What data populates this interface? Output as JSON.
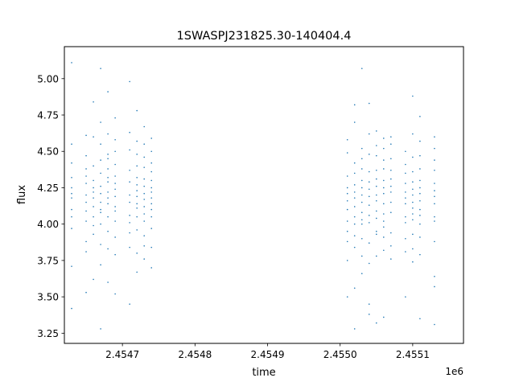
{
  "chart_data": {
    "type": "scatter",
    "title": "1SWASPJ231825.30-140404.4",
    "xlabel": "time",
    "ylabel": "flux",
    "x_offset_label": "1e6",
    "xlim": [
      2.45462,
      2.45517
    ],
    "ylim": [
      3.18,
      5.22
    ],
    "x_ticks": [
      {
        "value": 2.4547,
        "label": "2.4547"
      },
      {
        "value": 2.4548,
        "label": "2.4548"
      },
      {
        "value": 2.4549,
        "label": "2.4549"
      },
      {
        "value": 2.455,
        "label": "2.4550"
      },
      {
        "value": 2.4551,
        "label": "2.4551"
      }
    ],
    "y_ticks": [
      {
        "value": 3.25,
        "label": "3.25"
      },
      {
        "value": 3.5,
        "label": "3.50"
      },
      {
        "value": 3.75,
        "label": "3.75"
      },
      {
        "value": 4.0,
        "label": "4.00"
      },
      {
        "value": 4.25,
        "label": "4.25"
      },
      {
        "value": 4.5,
        "label": "4.50"
      },
      {
        "value": 4.75,
        "label": "4.75"
      },
      {
        "value": 5.0,
        "label": "5.00"
      }
    ],
    "grid": false,
    "marker_color": "#1f77b4",
    "series": [
      {
        "points": [
          [
            2.45463,
            4.32
          ],
          [
            2.45463,
            4.18
          ],
          [
            2.45463,
            4.05
          ],
          [
            2.45463,
            4.42
          ],
          [
            2.45463,
            4.55
          ],
          [
            2.45463,
            3.71
          ],
          [
            2.45463,
            4.25
          ],
          [
            2.45463,
            5.11
          ],
          [
            2.45463,
            3.42
          ],
          [
            2.45463,
            4.1
          ],
          [
            2.45463,
            4.21
          ],
          [
            2.45463,
            3.97
          ],
          [
            2.45465,
            4.15
          ],
          [
            2.45465,
            4.38
          ],
          [
            2.45465,
            4.02
          ],
          [
            2.45465,
            3.88
          ],
          [
            2.45465,
            4.28
          ],
          [
            2.45465,
            4.61
          ],
          [
            2.45465,
            3.53
          ],
          [
            2.45465,
            4.2
          ],
          [
            2.45465,
            4.09
          ],
          [
            2.45465,
            4.33
          ],
          [
            2.45465,
            3.81
          ],
          [
            2.45465,
            4.47
          ],
          [
            2.45466,
            4.22
          ],
          [
            2.45466,
            4.05
          ],
          [
            2.45466,
            4.4
          ],
          [
            2.45466,
            3.93
          ],
          [
            2.45466,
            4.6
          ],
          [
            2.45466,
            4.12
          ],
          [
            2.45466,
            3.62
          ],
          [
            2.45466,
            4.3
          ],
          [
            2.45466,
            4.18
          ],
          [
            2.45466,
            3.99
          ],
          [
            2.45466,
            4.84
          ],
          [
            2.45466,
            4.25
          ],
          [
            2.45467,
            4.26
          ],
          [
            2.45467,
            4.1
          ],
          [
            2.45467,
            4.44
          ],
          [
            2.45467,
            3.86
          ],
          [
            2.45467,
            4.35
          ],
          [
            2.45467,
            4.0
          ],
          [
            2.45467,
            4.7
          ],
          [
            2.45467,
            3.72
          ],
          [
            2.45467,
            4.21
          ],
          [
            2.45467,
            4.55
          ],
          [
            2.45467,
            4.15
          ],
          [
            2.45467,
            4.08
          ],
          [
            2.45467,
            3.28
          ],
          [
            2.45467,
            5.07
          ],
          [
            2.45468,
            4.29
          ],
          [
            2.45468,
            4.14
          ],
          [
            2.45468,
            4.48
          ],
          [
            2.45468,
            3.95
          ],
          [
            2.45468,
            4.38
          ],
          [
            2.45468,
            4.05
          ],
          [
            2.45468,
            4.62
          ],
          [
            2.45468,
            3.83
          ],
          [
            2.45468,
            4.22
          ],
          [
            2.45468,
            4.32
          ],
          [
            2.45468,
            4.91
          ],
          [
            2.45468,
            3.6
          ],
          [
            2.45468,
            4.18
          ],
          [
            2.45468,
            4.45
          ],
          [
            2.45469,
            4.24
          ],
          [
            2.45469,
            4.09
          ],
          [
            2.45469,
            4.41
          ],
          [
            2.45469,
            3.91
          ],
          [
            2.45469,
            4.33
          ],
          [
            2.45469,
            4.02
          ],
          [
            2.45469,
            4.58
          ],
          [
            2.45469,
            3.79
          ],
          [
            2.45469,
            4.19
          ],
          [
            2.45469,
            4.28
          ],
          [
            2.45469,
            4.73
          ],
          [
            2.45469,
            3.52
          ],
          [
            2.45469,
            4.12
          ],
          [
            2.45469,
            4.5
          ],
          [
            2.45471,
            4.2
          ],
          [
            2.45471,
            4.06
          ],
          [
            2.45471,
            4.37
          ],
          [
            2.45471,
            3.94
          ],
          [
            2.45471,
            4.29
          ],
          [
            2.45471,
            4.51
          ],
          [
            2.45471,
            3.84
          ],
          [
            2.45471,
            4.63
          ],
          [
            2.45471,
            4.15
          ],
          [
            2.45471,
            4.01
          ],
          [
            2.45471,
            3.45
          ],
          [
            2.45471,
            4.98
          ],
          [
            2.45472,
            4.23
          ],
          [
            2.45472,
            4.11
          ],
          [
            2.45472,
            4.4
          ],
          [
            2.45472,
            3.96
          ],
          [
            2.45472,
            4.32
          ],
          [
            2.45472,
            4.05
          ],
          [
            2.45472,
            4.57
          ],
          [
            2.45472,
            3.8
          ],
          [
            2.45472,
            4.19
          ],
          [
            2.45472,
            4.48
          ],
          [
            2.45472,
            3.67
          ],
          [
            2.45472,
            4.78
          ],
          [
            2.45472,
            4.27
          ],
          [
            2.45472,
            4.14
          ],
          [
            2.45473,
            4.21
          ],
          [
            2.45473,
            4.07
          ],
          [
            2.45473,
            4.39
          ],
          [
            2.45473,
            3.92
          ],
          [
            2.45473,
            4.31
          ],
          [
            2.45473,
            4.02
          ],
          [
            2.45473,
            4.55
          ],
          [
            2.45473,
            3.76
          ],
          [
            2.45473,
            4.17
          ],
          [
            2.45473,
            4.46
          ],
          [
            2.45473,
            4.67
          ],
          [
            2.45473,
            3.85
          ],
          [
            2.45473,
            4.26
          ],
          [
            2.45473,
            4.12
          ],
          [
            2.45474,
            4.22
          ],
          [
            2.45474,
            4.1
          ],
          [
            2.45474,
            4.36
          ],
          [
            2.45474,
            3.97
          ],
          [
            2.45474,
            4.3
          ],
          [
            2.45474,
            4.05
          ],
          [
            2.45474,
            4.5
          ],
          [
            2.45474,
            3.84
          ],
          [
            2.45474,
            4.18
          ],
          [
            2.45474,
            4.42
          ],
          [
            2.45474,
            3.7
          ],
          [
            2.45474,
            4.59
          ],
          [
            2.45474,
            4.25
          ],
          [
            2.45474,
            4.14
          ],
          [
            2.45501,
            4.16
          ],
          [
            2.45501,
            4.02
          ],
          [
            2.45501,
            4.33
          ],
          [
            2.45501,
            3.88
          ],
          [
            2.45501,
            4.25
          ],
          [
            2.45501,
            4.49
          ],
          [
            2.45501,
            3.75
          ],
          [
            2.45501,
            4.1
          ],
          [
            2.45501,
            4.58
          ],
          [
            2.45501,
            3.95
          ],
          [
            2.45501,
            4.21
          ],
          [
            2.45501,
            3.5
          ],
          [
            2.45502,
            4.18
          ],
          [
            2.45502,
            4.05
          ],
          [
            2.45502,
            4.35
          ],
          [
            2.45502,
            3.92
          ],
          [
            2.45502,
            4.27
          ],
          [
            2.45502,
            4.0
          ],
          [
            2.45502,
            4.82
          ],
          [
            2.45502,
            3.56
          ],
          [
            2.45502,
            3.28
          ],
          [
            2.45502,
            4.42
          ],
          [
            2.45502,
            4.12
          ],
          [
            2.45502,
            4.22
          ],
          [
            2.45502,
            3.84
          ],
          [
            2.45502,
            4.7
          ],
          [
            2.45503,
            4.2
          ],
          [
            2.45503,
            4.08
          ],
          [
            2.45503,
            4.38
          ],
          [
            2.45503,
            3.9
          ],
          [
            2.45503,
            4.3
          ],
          [
            2.45503,
            4.03
          ],
          [
            2.45503,
            4.52
          ],
          [
            2.45503,
            3.78
          ],
          [
            2.45503,
            4.15
          ],
          [
            2.45503,
            4.45
          ],
          [
            2.45503,
            3.66
          ],
          [
            2.45503,
            4.25
          ],
          [
            2.45503,
            5.07
          ],
          [
            2.45503,
            4.0
          ],
          [
            2.45504,
            4.19
          ],
          [
            2.45504,
            4.06
          ],
          [
            2.45504,
            4.36
          ],
          [
            2.45504,
            3.87
          ],
          [
            2.45504,
            4.29
          ],
          [
            2.45504,
            4.01
          ],
          [
            2.45504,
            4.83
          ],
          [
            2.45504,
            3.45
          ],
          [
            2.45504,
            3.38
          ],
          [
            2.45504,
            4.24
          ],
          [
            2.45504,
            4.48
          ],
          [
            2.45504,
            4.13
          ],
          [
            2.45504,
            3.73
          ],
          [
            2.45504,
            4.62
          ],
          [
            2.45505,
            4.2
          ],
          [
            2.45505,
            4.09
          ],
          [
            2.45505,
            4.37
          ],
          [
            2.45505,
            3.93
          ],
          [
            2.45505,
            4.31
          ],
          [
            2.45505,
            4.04
          ],
          [
            2.45505,
            4.54
          ],
          [
            2.45505,
            3.32
          ],
          [
            2.45505,
            4.16
          ],
          [
            2.45505,
            4.47
          ],
          [
            2.45505,
            3.78
          ],
          [
            2.45505,
            4.26
          ],
          [
            2.45505,
            3.95
          ],
          [
            2.45505,
            4.64
          ],
          [
            2.45506,
            4.21
          ],
          [
            2.45506,
            4.07
          ],
          [
            2.45506,
            4.38
          ],
          [
            2.45506,
            3.91
          ],
          [
            2.45506,
            4.3
          ],
          [
            2.45506,
            4.02
          ],
          [
            2.45506,
            4.59
          ],
          [
            2.45506,
            3.82
          ],
          [
            2.45506,
            4.14
          ],
          [
            2.45506,
            4.44
          ],
          [
            2.45506,
            3.36
          ],
          [
            2.45506,
            4.25
          ],
          [
            2.45506,
            4.52
          ],
          [
            2.45506,
            3.98
          ],
          [
            2.45507,
            4.22
          ],
          [
            2.45507,
            4.08
          ],
          [
            2.45507,
            4.37
          ],
          [
            2.45507,
            3.94
          ],
          [
            2.45507,
            4.31
          ],
          [
            2.45507,
            4.6
          ],
          [
            2.45507,
            3.85
          ],
          [
            2.45507,
            4.15
          ],
          [
            2.45507,
            4.45
          ],
          [
            2.45507,
            4.26
          ],
          [
            2.45507,
            3.76
          ],
          [
            2.45507,
            4.55
          ],
          [
            2.45509,
            4.18
          ],
          [
            2.45509,
            4.05
          ],
          [
            2.45509,
            4.35
          ],
          [
            2.45509,
            3.9
          ],
          [
            2.45509,
            4.28
          ],
          [
            2.45509,
            4.01
          ],
          [
            2.45509,
            4.5
          ],
          [
            2.45509,
            3.81
          ],
          [
            2.45509,
            4.22
          ],
          [
            2.45509,
            4.41
          ],
          [
            2.45509,
            3.5
          ],
          [
            2.45509,
            4.14
          ],
          [
            2.4551,
            4.2
          ],
          [
            2.4551,
            4.07
          ],
          [
            2.4551,
            4.36
          ],
          [
            2.4551,
            3.93
          ],
          [
            2.4551,
            4.29
          ],
          [
            2.4551,
            4.03
          ],
          [
            2.4551,
            4.62
          ],
          [
            2.4551,
            3.83
          ],
          [
            2.4551,
            4.15
          ],
          [
            2.4551,
            4.46
          ],
          [
            2.4551,
            4.88
          ],
          [
            2.4551,
            4.24
          ],
          [
            2.4551,
            3.74
          ],
          [
            2.4551,
            4.11
          ],
          [
            2.45511,
            4.21
          ],
          [
            2.45511,
            4.06
          ],
          [
            2.45511,
            4.38
          ],
          [
            2.45511,
            3.91
          ],
          [
            2.45511,
            4.3
          ],
          [
            2.45511,
            4.0
          ],
          [
            2.45511,
            4.57
          ],
          [
            2.45511,
            3.79
          ],
          [
            2.45511,
            4.16
          ],
          [
            2.45511,
            4.47
          ],
          [
            2.45511,
            4.74
          ],
          [
            2.45511,
            4.25
          ],
          [
            2.45511,
            3.35
          ],
          [
            2.45511,
            4.1
          ],
          [
            2.45513,
            4.19
          ],
          [
            2.45513,
            4.05
          ],
          [
            2.45513,
            4.37
          ],
          [
            2.45513,
            3.88
          ],
          [
            2.45513,
            4.28
          ],
          [
            2.45513,
            4.02
          ],
          [
            2.45513,
            4.52
          ],
          [
            2.45513,
            3.64
          ],
          [
            2.45513,
            4.14
          ],
          [
            2.45513,
            4.44
          ],
          [
            2.45513,
            3.31
          ],
          [
            2.45513,
            3.57
          ],
          [
            2.45513,
            4.23
          ],
          [
            2.45513,
            4.6
          ]
        ]
      }
    ]
  }
}
